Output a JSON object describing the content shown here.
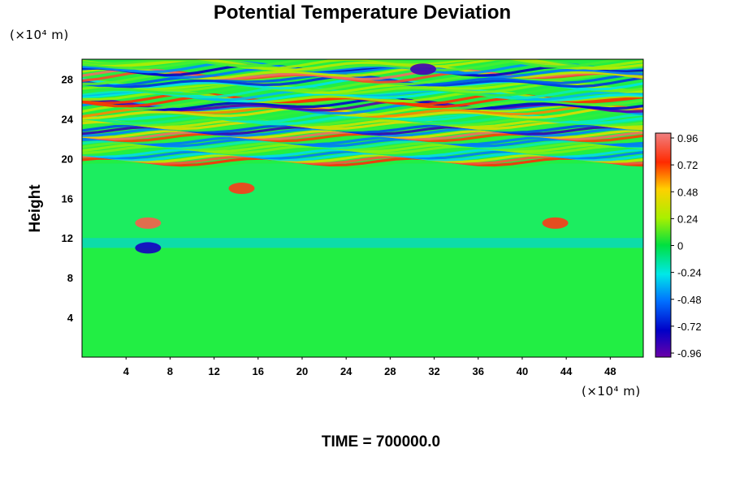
{
  "chart_data": {
    "type": "heatmap",
    "title": "Potential Temperature Deviation",
    "ylabel": "Height",
    "xlabel": "",
    "x_unit": "(×10⁴ m)",
    "y_unit": "(×10⁴ m)",
    "x_ticks": [
      4,
      8,
      12,
      16,
      20,
      24,
      28,
      32,
      36,
      40,
      44,
      48
    ],
    "y_ticks": [
      4,
      8,
      12,
      16,
      20,
      24,
      28
    ],
    "xlim": [
      0,
      51
    ],
    "ylim": [
      0,
      30
    ],
    "colorbar": {
      "ticks": [
        "0.96",
        "0.72",
        "0.48",
        "0.24",
        "0",
        "-0.24",
        "-0.48",
        "-0.72",
        "-0.96"
      ],
      "range": [
        -1.0,
        1.0
      ]
    },
    "field_description_zones": [
      {
        "y_range": [
          0,
          11
        ],
        "value": 0.0
      },
      {
        "y_range": [
          11,
          12
        ],
        "value": -0.5
      },
      {
        "y_range": [
          12,
          19.5
        ],
        "value": -0.1
      },
      {
        "y_range": [
          19.5,
          30
        ],
        "value": "oscillating wave pattern, amplitude about 1"
      }
    ],
    "features": [
      {
        "x": 6,
        "y": 13.5,
        "value": 0.9
      },
      {
        "x": 14.5,
        "y": 17,
        "value": 0.8
      },
      {
        "x": 43,
        "y": 13.5,
        "value": 0.8
      },
      {
        "x": 31,
        "y": 29,
        "value": -0.9
      },
      {
        "x": 6,
        "y": 11,
        "value": -0.8
      }
    ]
  },
  "footer": {
    "time_label": "TIME = 700000.0"
  }
}
